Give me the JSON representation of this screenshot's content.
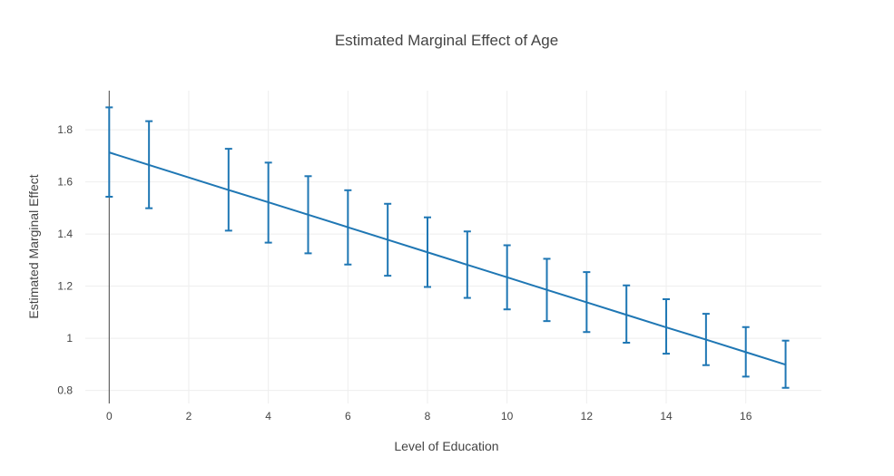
{
  "chart_data": {
    "type": "line",
    "title": "Estimated Marginal Effect of Age",
    "xlabel": "Level of Education",
    "ylabel": "Estimated Marginal Effect",
    "xlim": [
      -0.6,
      17.9
    ],
    "ylim": [
      0.75,
      1.95
    ],
    "x_ticks": [
      0,
      2,
      4,
      6,
      8,
      10,
      12,
      14,
      16
    ],
    "x_tick_labels": [
      "0",
      "2",
      "4",
      "6",
      "8",
      "10",
      "12",
      "14",
      "16"
    ],
    "y_ticks": [
      0.8,
      1.0,
      1.2,
      1.4,
      1.6,
      1.8
    ],
    "y_tick_labels": [
      "0.8",
      "1",
      "1.2",
      "1.4",
      "1.6",
      "1.8"
    ],
    "grid": true,
    "line_color": "#1f77b4",
    "grid_color": "#eeeeee",
    "series": [
      {
        "x": [
          0,
          1,
          3,
          4,
          5,
          6,
          7,
          8,
          9,
          10,
          11,
          12,
          13,
          14,
          15,
          16,
          17
        ],
        "y": [
          1.713,
          1.665,
          1.569,
          1.522,
          1.474,
          1.426,
          1.378,
          1.33,
          1.282,
          1.234,
          1.186,
          1.138,
          1.09,
          1.042,
          0.995,
          0.947,
          0.899
        ],
        "error_low": [
          1.543,
          1.499,
          1.413,
          1.367,
          1.326,
          1.283,
          1.24,
          1.197,
          1.155,
          1.111,
          1.066,
          1.024,
          0.983,
          0.941,
          0.897,
          0.853,
          0.81
        ],
        "error_high": [
          1.886,
          1.833,
          1.727,
          1.674,
          1.622,
          1.568,
          1.516,
          1.464,
          1.41,
          1.357,
          1.305,
          1.254,
          1.203,
          1.15,
          1.094,
          1.043,
          0.991
        ]
      }
    ]
  }
}
